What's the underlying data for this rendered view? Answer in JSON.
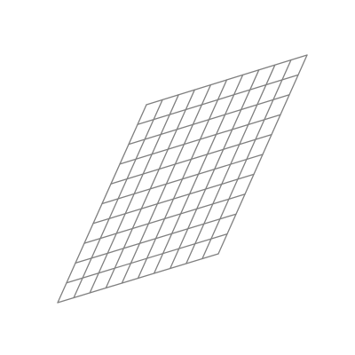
{
  "figure": {
    "type": "sheared-grid",
    "rows": 10,
    "columns": 10,
    "line_color": "#7f7f7f",
    "background": "#ffffff"
  }
}
